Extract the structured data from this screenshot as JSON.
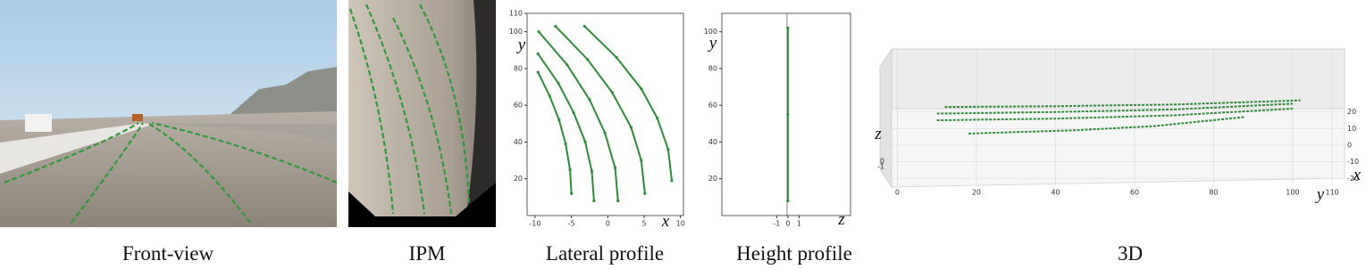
{
  "captions": [
    "Front-view",
    "IPM",
    "Lateral profile",
    "Height profile",
    "3D"
  ],
  "chart_data": [
    {
      "type": "line",
      "xlabel": "x",
      "ylabel": "y",
      "xlim": [
        -11.1,
        10.4
      ],
      "ylim": [
        0,
        110
      ],
      "xticks": [
        -10,
        -5,
        0,
        5,
        10
      ],
      "yticks": [
        20,
        40,
        60,
        80,
        100,
        110
      ],
      "color": "#2e8b3a",
      "series": [
        {
          "x": [
            -9.6,
            -8.0,
            -6.7,
            -5.8,
            -5.2,
            -5.0
          ],
          "values": [
            78,
            65,
            52,
            39,
            25,
            12
          ]
        },
        {
          "x": [
            -9.6,
            -6.8,
            -4.7,
            -3.1,
            -2.2,
            -1.9
          ],
          "values": [
            88,
            72,
            56,
            40,
            24,
            8
          ]
        },
        {
          "x": [
            -9.5,
            -5.6,
            -2.5,
            -0.4,
            1.0,
            1.4
          ],
          "values": [
            100,
            82,
            63,
            45,
            26,
            8
          ]
        },
        {
          "x": [
            -7.2,
            -2.8,
            0.6,
            3.2,
            4.6,
            5.1
          ],
          "values": [
            103,
            85,
            67,
            48,
            30,
            12
          ]
        },
        {
          "x": [
            -3.2,
            1.2,
            4.6,
            6.8,
            8.3,
            8.8
          ],
          "values": [
            103,
            86,
            69,
            53,
            36,
            19
          ]
        }
      ]
    },
    {
      "type": "line",
      "xlabel": "z",
      "ylabel": "y",
      "xlim": [
        -5.9,
        5.6
      ],
      "ylim": [
        0,
        110
      ],
      "xticks": [
        -1,
        0,
        1
      ],
      "yticks": [
        20,
        40,
        60,
        80,
        100
      ],
      "color": "#2e8b3a",
      "series": [
        {
          "x": [
            0,
            0,
            0
          ],
          "values": [
            8,
            55,
            102
          ]
        }
      ]
    },
    {
      "type": "line3d",
      "xlabel": "x",
      "ylabel": "y",
      "zlabel": "z",
      "xlim": [
        -22,
        22
      ],
      "ylim": [
        -1,
        112
      ],
      "xticks": [
        20,
        10,
        0,
        -10,
        -20
      ],
      "yticks": [
        0,
        20,
        40,
        60,
        80,
        100,
        110
      ],
      "zticks": [
        0,
        -1
      ],
      "color": "#2e8b3a",
      "series": [
        {
          "y": [
            12,
            40,
            70,
            102
          ],
          "values": [
            23,
            23.5,
            24.5,
            27
          ]
        },
        {
          "y": [
            10,
            40,
            70,
            100
          ],
          "values": [
            19,
            20,
            21.5,
            25
          ]
        },
        {
          "y": [
            10,
            40,
            70,
            100
          ],
          "values": [
            15,
            16,
            18,
            22
          ]
        },
        {
          "y": [
            18,
            45,
            65,
            88
          ],
          "values": [
            7,
            9,
            11.5,
            17
          ]
        }
      ]
    }
  ]
}
